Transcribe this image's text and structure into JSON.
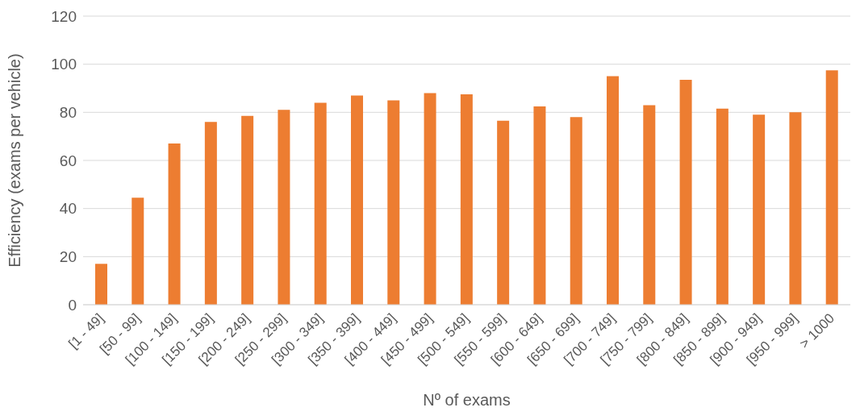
{
  "chart_data": {
    "type": "bar",
    "xlabel": "Nº of exams",
    "ylabel": "Efficiency (exams per vehicle)",
    "categories": [
      "[1 - 49]",
      "[50 - 99]",
      "[100 - 149]",
      "[150 - 199]",
      "[200 - 249]",
      "[250 - 299]",
      "[300 - 349]",
      "[350 - 399]",
      "[400 - 449]",
      "[450 - 499]",
      "[500 - 549]",
      "[550 - 599]",
      "[600 - 649]",
      "[650 - 699]",
      "[700 - 749]",
      "[750 - 799]",
      "[800 - 849]",
      "[850 - 899]",
      "[900 - 949]",
      "[950 - 999]",
      "> 1000"
    ],
    "values": [
      17,
      44.5,
      67,
      76,
      78.5,
      81,
      84,
      87,
      85,
      88,
      87.5,
      76.5,
      82.5,
      78,
      95,
      83,
      93.5,
      81.5,
      79,
      80,
      97.5
    ],
    "color": "#ed7d31",
    "ylim": [
      0,
      120
    ],
    "yticks": [
      0,
      20,
      40,
      60,
      80,
      100,
      120
    ],
    "grid": "y"
  }
}
